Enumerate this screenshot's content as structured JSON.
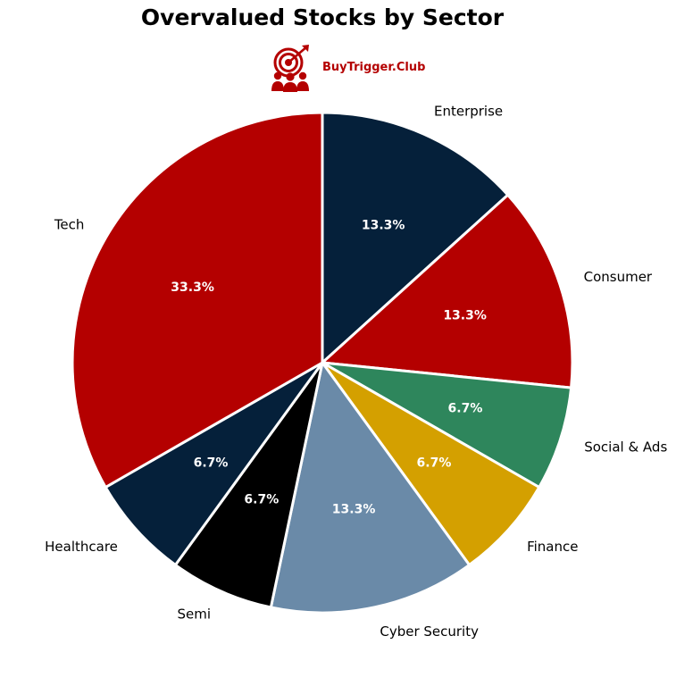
{
  "chart_data": {
    "type": "pie",
    "title": "Overvalued Stocks by Sector",
    "start_angle_deg": 90,
    "direction": "clockwise",
    "slices": [
      {
        "label": "Enterprise",
        "value": 13.3,
        "pct_label": "13.3%",
        "color": "#05203a"
      },
      {
        "label": "Consumer",
        "value": 13.3,
        "pct_label": "13.3%",
        "color": "#b40000"
      },
      {
        "label": "Social & Ads",
        "value": 6.7,
        "pct_label": "6.7%",
        "color": "#2e865c"
      },
      {
        "label": "Finance",
        "value": 6.7,
        "pct_label": "6.7%",
        "color": "#d4a000"
      },
      {
        "label": "Cyber Security",
        "value": 13.3,
        "pct_label": "13.3%",
        "color": "#6a8aa8"
      },
      {
        "label": "Semi",
        "value": 6.7,
        "pct_label": "6.7%",
        "color": "#000000"
      },
      {
        "label": "Healthcare",
        "value": 6.7,
        "pct_label": "6.7%",
        "color": "#05203a"
      },
      {
        "label": "Tech",
        "value": 33.3,
        "pct_label": "33.3%",
        "color": "#b40000"
      }
    ]
  },
  "brand": {
    "name": "BuyTrigger.Club",
    "icon": "target-audience-icon",
    "color": "#b40000"
  }
}
